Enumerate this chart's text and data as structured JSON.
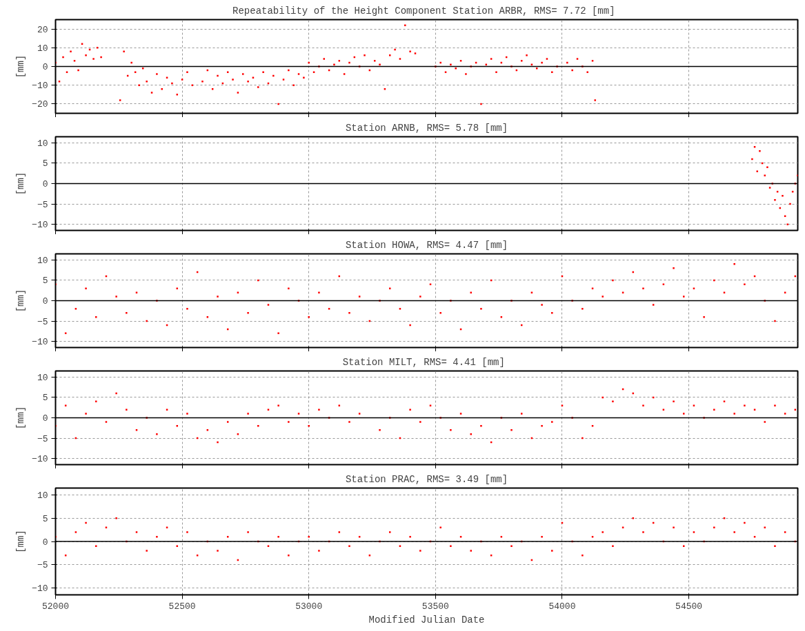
{
  "chart_data": [
    {
      "type": "scatter",
      "title": "Repeatability of the Height Component Station ARBR,  RMS= 7.72 [mm]",
      "ylabel": "[mm]",
      "color": "#ff0000",
      "marker": "square",
      "grid": true,
      "tick_labels": "y",
      "xlim": [
        52000,
        54930
      ],
      "xticks": [
        52000,
        52500,
        53000,
        53500,
        54000,
        54500
      ],
      "ylim": [
        -25,
        25
      ],
      "yticks": [
        -20,
        -10,
        0,
        10,
        20
      ],
      "ref_lines": [
        {
          "axis": "y",
          "value": 0,
          "color": "#000000"
        }
      ],
      "x": [
        52000,
        52015,
        52030,
        52045,
        52060,
        52075,
        52090,
        52105,
        52120,
        52135,
        52150,
        52165,
        52180,
        52255,
        52270,
        52285,
        52300,
        52315,
        52330,
        52345,
        52360,
        52380,
        52400,
        52420,
        52440,
        52460,
        52480,
        52500,
        52520,
        52540,
        52580,
        52600,
        52620,
        52640,
        52660,
        52680,
        52700,
        52720,
        52740,
        52760,
        52780,
        52800,
        52820,
        52840,
        52860,
        52880,
        52900,
        52920,
        52940,
        52960,
        52980,
        53000,
        53020,
        53040,
        53060,
        53080,
        53100,
        53120,
        53140,
        53160,
        53180,
        53200,
        53220,
        53240,
        53260,
        53280,
        53300,
        53320,
        53340,
        53360,
        53380,
        53400,
        53420,
        53500,
        53520,
        53540,
        53560,
        53580,
        53600,
        53620,
        53640,
        53660,
        53680,
        53700,
        53720,
        53740,
        53760,
        53780,
        53800,
        53820,
        53840,
        53860,
        53880,
        53900,
        53920,
        53940,
        53960,
        53980,
        54020,
        54040,
        54060,
        54080,
        54100,
        54120,
        54130
      ],
      "values": [
        2,
        -8,
        5,
        -3,
        8,
        3,
        -2,
        12,
        6,
        9,
        4,
        10,
        5,
        -18,
        8,
        -5,
        2,
        -3,
        -10,
        -1,
        -8,
        -14,
        -4,
        -12,
        -6,
        -9,
        -15,
        -7,
        -3,
        -10,
        -8,
        -2,
        -12,
        -5,
        -9,
        -3,
        -7,
        -14,
        -4,
        -8,
        -6,
        -11,
        -3,
        -9,
        -5,
        -20,
        -7,
        -2,
        -10,
        -4,
        -6,
        2,
        -3,
        0,
        4,
        -2,
        1,
        3,
        -4,
        2,
        5,
        0,
        6,
        -2,
        3,
        1,
        -12,
        6,
        9,
        4,
        22,
        8,
        7,
        0,
        2,
        -3,
        1,
        -1,
        3,
        -4,
        0,
        2,
        -20,
        1,
        4,
        -3,
        2,
        5,
        0,
        -2,
        3,
        6,
        1,
        -1,
        2,
        4,
        -3,
        0,
        2,
        -2,
        4,
        0,
        -3,
        3,
        -18
      ]
    },
    {
      "type": "scatter",
      "title": "Station ARNB, RMS= 5.78 [mm]",
      "ylabel": "[mm]",
      "color": "#ff0000",
      "marker": "square",
      "grid": true,
      "tick_labels": "y",
      "xlim": [
        52000,
        54930
      ],
      "xticks": [
        52000,
        52500,
        53000,
        53500,
        54000,
        54500
      ],
      "ylim": [
        -11.5,
        11.5
      ],
      "yticks": [
        -10,
        -5,
        0,
        5,
        10
      ],
      "ref_lines": [
        {
          "axis": "y",
          "value": 0,
          "color": "#000000"
        }
      ],
      "x": [
        54750,
        54760,
        54770,
        54780,
        54790,
        54800,
        54810,
        54820,
        54830,
        54840,
        54850,
        54860,
        54870,
        54880,
        54890,
        54900,
        54910,
        54920,
        54930
      ],
      "values": [
        6,
        9,
        3,
        8,
        5,
        2,
        4,
        -1,
        0,
        -4,
        -2,
        -6,
        -3,
        -8,
        -10,
        -5,
        -2,
        0,
        2
      ]
    },
    {
      "type": "scatter",
      "title": "Station HOWA, RMS= 4.47 [mm]",
      "ylabel": "[mm]",
      "color": "#ff0000",
      "marker": "square",
      "grid": true,
      "tick_labels": "y",
      "xlim": [
        52000,
        54930
      ],
      "xticks": [
        52000,
        52500,
        53000,
        53500,
        54000,
        54500
      ],
      "ylim": [
        -11.5,
        11.5
      ],
      "yticks": [
        -10,
        -5,
        0,
        5,
        10
      ],
      "ref_lines": [
        {
          "axis": "y",
          "value": 0,
          "color": "#000000"
        }
      ],
      "x": [
        52000,
        52040,
        52080,
        52120,
        52160,
        52200,
        52240,
        52280,
        52320,
        52360,
        52400,
        52440,
        52480,
        52520,
        52560,
        52600,
        52640,
        52680,
        52720,
        52760,
        52800,
        52840,
        52880,
        52920,
        52960,
        53000,
        53040,
        53080,
        53120,
        53160,
        53200,
        53240,
        53280,
        53320,
        53360,
        53400,
        53440,
        53480,
        53520,
        53560,
        53600,
        53640,
        53680,
        53720,
        53760,
        53800,
        53840,
        53880,
        53920,
        53960,
        54000,
        54040,
        54080,
        54120,
        54160,
        54200,
        54240,
        54280,
        54320,
        54360,
        54400,
        54440,
        54480,
        54520,
        54560,
        54600,
        54640,
        54680,
        54720,
        54760,
        54800,
        54840,
        54880,
        54920
      ],
      "values": [
        4,
        -8,
        -2,
        3,
        -4,
        6,
        1,
        -3,
        2,
        -5,
        0,
        -6,
        3,
        -2,
        7,
        -4,
        1,
        -7,
        2,
        -3,
        5,
        -1,
        -8,
        3,
        0,
        -4,
        2,
        -2,
        6,
        -3,
        1,
        -5,
        0,
        3,
        -2,
        -6,
        1,
        4,
        -3,
        0,
        -7,
        2,
        -2,
        5,
        -4,
        0,
        -6,
        2,
        -1,
        -3,
        6,
        0,
        -2,
        3,
        1,
        5,
        2,
        7,
        3,
        -1,
        4,
        8,
        1,
        3,
        -4,
        5,
        2,
        9,
        4,
        6,
        0,
        -5,
        2,
        6
      ]
    },
    {
      "type": "scatter",
      "title": "Station MILT,  RMS= 4.41 [mm]",
      "ylabel": "[mm]",
      "color": "#ff0000",
      "marker": "square",
      "grid": true,
      "tick_labels": "y",
      "xlim": [
        52000,
        54930
      ],
      "xticks": [
        52000,
        52500,
        53000,
        53500,
        54000,
        54500
      ],
      "ylim": [
        -11.5,
        11.5
      ],
      "yticks": [
        -10,
        -5,
        0,
        5,
        10
      ],
      "ref_lines": [
        {
          "axis": "y",
          "value": 0,
          "color": "#000000"
        }
      ],
      "x": [
        52000,
        52040,
        52080,
        52120,
        52160,
        52200,
        52240,
        52280,
        52320,
        52360,
        52400,
        52440,
        52480,
        52520,
        52560,
        52600,
        52640,
        52680,
        52720,
        52760,
        52800,
        52840,
        52880,
        52920,
        52960,
        53000,
        53040,
        53080,
        53120,
        53160,
        53200,
        53280,
        53320,
        53360,
        53400,
        53440,
        53480,
        53520,
        53560,
        53600,
        53640,
        53680,
        53720,
        53760,
        53800,
        53840,
        53880,
        53920,
        53960,
        54000,
        54040,
        54080,
        54120,
        54160,
        54200,
        54240,
        54280,
        54320,
        54360,
        54400,
        54440,
        54480,
        54520,
        54560,
        54600,
        54640,
        54680,
        54720,
        54760,
        54800,
        54840,
        54880,
        54920
      ],
      "values": [
        -2,
        3,
        -5,
        1,
        4,
        -1,
        6,
        2,
        -3,
        0,
        -4,
        2,
        -2,
        1,
        -5,
        -3,
        -6,
        -1,
        -4,
        1,
        -2,
        2,
        3,
        -1,
        1,
        -2,
        2,
        0,
        3,
        -1,
        1,
        -3,
        0,
        -5,
        2,
        -1,
        3,
        0,
        -3,
        1,
        -4,
        -2,
        -6,
        0,
        -3,
        1,
        -5,
        -2,
        -1,
        3,
        0,
        -5,
        -2,
        5,
        4,
        7,
        6,
        3,
        5,
        2,
        4,
        1,
        3,
        0,
        2,
        4,
        1,
        3,
        2,
        -1,
        3,
        1,
        2
      ]
    },
    {
      "type": "scatter",
      "title": "Station PRAC, RMS= 3.49 [mm]",
      "ylabel": "[mm]",
      "xlabel": "Modified Julian Date",
      "color": "#ff0000",
      "marker": "square",
      "grid": true,
      "xlim": [
        52000,
        54930
      ],
      "xticks": [
        52000,
        52500,
        53000,
        53500,
        54000,
        54500
      ],
      "ylim": [
        -11.5,
        11.5
      ],
      "yticks": [
        -10,
        -5,
        0,
        5,
        10
      ],
      "ref_lines": [
        {
          "axis": "y",
          "value": 0,
          "color": "#000000"
        }
      ],
      "x": [
        52000,
        52040,
        52080,
        52120,
        52160,
        52200,
        52240,
        52280,
        52320,
        52360,
        52400,
        52440,
        52480,
        52520,
        52560,
        52600,
        52640,
        52680,
        52720,
        52760,
        52800,
        52840,
        52880,
        52920,
        52960,
        53000,
        53040,
        53080,
        53120,
        53160,
        53200,
        53240,
        53280,
        53320,
        53360,
        53400,
        53440,
        53480,
        53520,
        53560,
        53600,
        53640,
        53680,
        53720,
        53760,
        53800,
        53840,
        53880,
        53920,
        53960,
        54000,
        54040,
        54080,
        54120,
        54160,
        54200,
        54240,
        54280,
        54320,
        54360,
        54400,
        54440,
        54480,
        54520,
        54560,
        54600,
        54640,
        54680,
        54720,
        54760,
        54800,
        54840,
        54880,
        54920
      ],
      "values": [
        1,
        -3,
        2,
        4,
        -1,
        3,
        5,
        0,
        2,
        -2,
        1,
        3,
        -1,
        2,
        -3,
        0,
        -2,
        1,
        -4,
        2,
        0,
        -1,
        1,
        -3,
        0,
        1,
        -2,
        0,
        2,
        -1,
        1,
        -3,
        0,
        2,
        -1,
        1,
        -2,
        0,
        3,
        -1,
        1,
        -2,
        0,
        -3,
        1,
        -1,
        0,
        -4,
        1,
        -2,
        4,
        0,
        -3,
        1,
        2,
        -1,
        3,
        5,
        2,
        4,
        0,
        3,
        -1,
        2,
        0,
        3,
        5,
        2,
        4,
        1,
        3,
        -1,
        2,
        0
      ]
    }
  ]
}
